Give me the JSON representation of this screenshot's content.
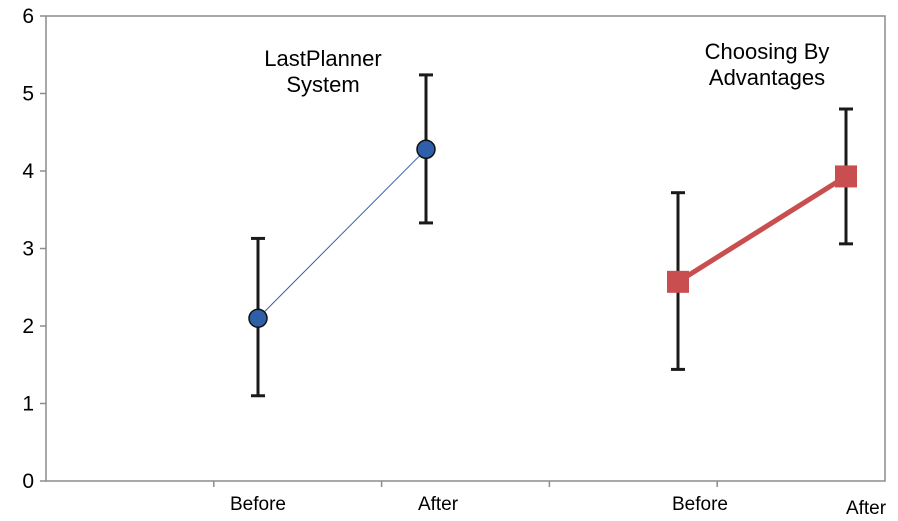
{
  "chart_data": {
    "type": "line",
    "title": "",
    "xlabel": "",
    "ylabel": "",
    "ylim": [
      0,
      6
    ],
    "y_ticks": [
      0,
      1,
      2,
      3,
      4,
      5,
      6
    ],
    "grid": false,
    "legend": "none",
    "x_labels": [
      "Before",
      "After",
      "Before",
      "After"
    ],
    "series": [
      {
        "label_lines": [
          "LastPlanner",
          "System"
        ],
        "marker": "circle",
        "color": "#2f5fa8",
        "line_color": "#3a5f9f",
        "points": [
          {
            "x": "Before",
            "y": 2.1,
            "err_low": 1.1,
            "err_high": 3.13
          },
          {
            "x": "After",
            "y": 4.28,
            "err_low": 3.33,
            "err_high": 5.24
          }
        ]
      },
      {
        "label_lines": [
          "Choosing By",
          "Advantages"
        ],
        "marker": "square",
        "color": "#c84e50",
        "line_color": "#c84e50",
        "points": [
          {
            "x": "Before",
            "y": 2.57,
            "err_low": 1.44,
            "err_high": 3.72
          },
          {
            "x": "After",
            "y": 3.93,
            "err_low": 3.06,
            "err_high": 4.8
          }
        ]
      }
    ]
  }
}
